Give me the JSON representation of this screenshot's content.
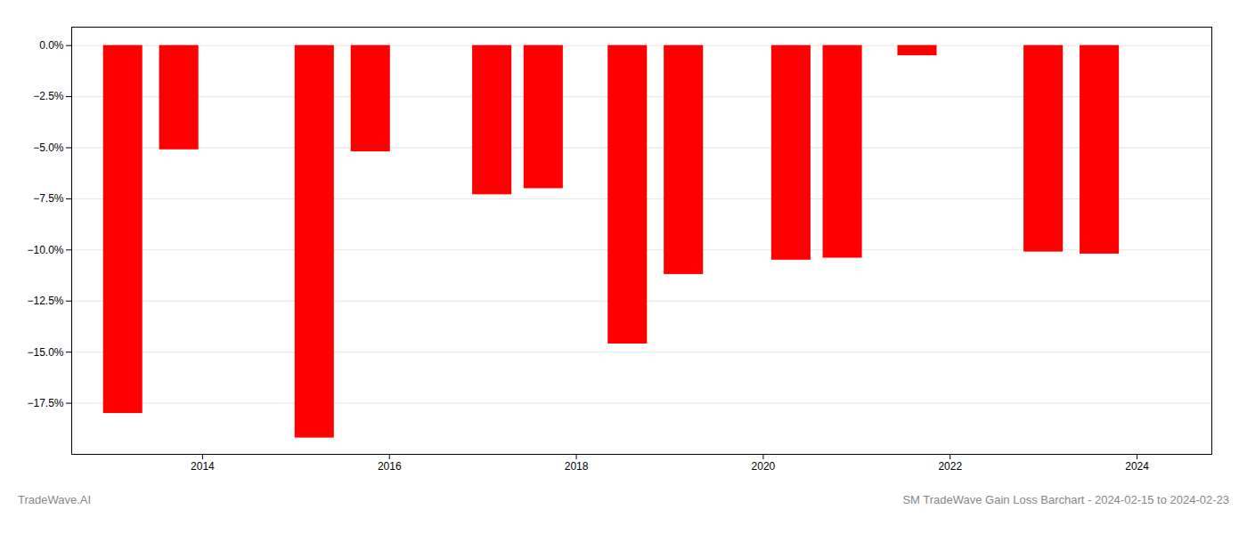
{
  "chart_data": {
    "type": "bar",
    "x": [
      2013.15,
      2013.75,
      2015.2,
      2015.8,
      2017.1,
      2017.65,
      2018.55,
      2019.15,
      2020.3,
      2020.85,
      2021.65,
      2023.0,
      2023.6
    ],
    "values": [
      -18.0,
      -5.1,
      -19.2,
      -5.2,
      -7.3,
      -7.0,
      -14.6,
      -11.2,
      -10.5,
      -10.4,
      -0.5,
      -10.1,
      -10.2
    ],
    "color": "#ff0000",
    "xlim": [
      2012.6,
      2024.8
    ],
    "xticks": [
      2014,
      2016,
      2018,
      2020,
      2022,
      2024
    ],
    "ylim": [
      -20.0,
      0.9
    ],
    "yticks": [
      {
        "value": 0.0,
        "label": "0.0%"
      },
      {
        "value": -2.5,
        "label": "−2.5%"
      },
      {
        "value": -5.0,
        "label": "−5.0%"
      },
      {
        "value": -7.5,
        "label": "−7.5%"
      },
      {
        "value": -10.0,
        "label": "−10.0%"
      },
      {
        "value": -12.5,
        "label": "−12.5%"
      },
      {
        "value": -15.0,
        "label": "−15.0%"
      },
      {
        "value": -17.5,
        "label": "−17.5%"
      }
    ],
    "grid": true,
    "annotations": [
      "TradeWave.AI",
      "SM TradeWave Gain Loss Barchart - 2024-02-15 to 2024-02-23"
    ]
  }
}
